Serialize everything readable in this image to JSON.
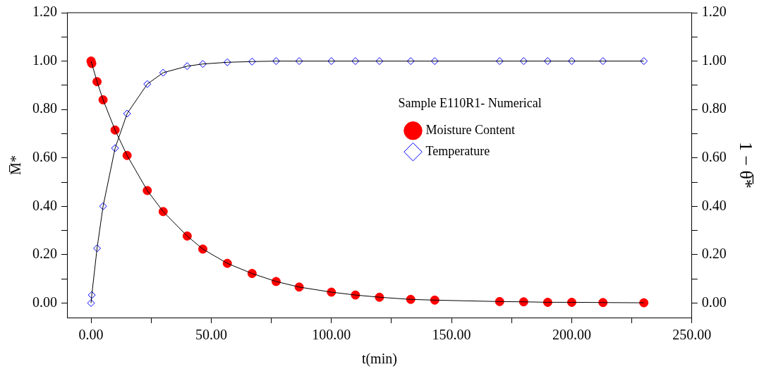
{
  "chart_data": {
    "type": "scatter",
    "xlabel": "t(min)",
    "ylabel": "M̅*",
    "y2label": "1 − θ̅*",
    "legend_title": "Sample E110R1- Numerical",
    "legend": "top right",
    "line_style": "solid",
    "grid": false,
    "xlim": [
      -10,
      250
    ],
    "ylim": [
      -0.06,
      1.2
    ],
    "y2lim": [
      -0.06,
      1.2
    ],
    "xticks": [
      {
        "value": 0,
        "label": "0.00"
      },
      {
        "value": 25,
        "label": null
      },
      {
        "value": 50,
        "label": "50.00"
      },
      {
        "value": 75,
        "label": null
      },
      {
        "value": 100,
        "label": "100.00"
      },
      {
        "value": 125,
        "label": null
      },
      {
        "value": 150,
        "label": "150.00"
      },
      {
        "value": 175,
        "label": null
      },
      {
        "value": 200,
        "label": "200.00"
      },
      {
        "value": 225,
        "label": null
      },
      {
        "value": 250,
        "label": "250.00"
      }
    ],
    "yticks": [
      {
        "value": 0,
        "label": "0.00"
      },
      {
        "value": 0.1,
        "label": null
      },
      {
        "value": 0.2,
        "label": "0.20"
      },
      {
        "value": 0.3,
        "label": null
      },
      {
        "value": 0.4,
        "label": "0.40"
      },
      {
        "value": 0.5,
        "label": null
      },
      {
        "value": 0.6,
        "label": "0.60"
      },
      {
        "value": 0.7,
        "label": null
      },
      {
        "value": 0.8,
        "label": "0.80"
      },
      {
        "value": 0.9,
        "label": null
      },
      {
        "value": 1,
        "label": "1.00"
      },
      {
        "value": 1.1,
        "label": null
      },
      {
        "value": 1.2,
        "label": "1.20"
      }
    ],
    "y2ticks": [
      {
        "value": 0,
        "label": "0.00"
      },
      {
        "value": 0.1,
        "label": null
      },
      {
        "value": 0.2,
        "label": "0.20"
      },
      {
        "value": 0.3,
        "label": null
      },
      {
        "value": 0.4,
        "label": "0.40"
      },
      {
        "value": 0.5,
        "label": null
      },
      {
        "value": 0.6,
        "label": "0.60"
      },
      {
        "value": 0.7,
        "label": null
      },
      {
        "value": 0.8,
        "label": "0.80"
      },
      {
        "value": 0.9,
        "label": null
      },
      {
        "value": 1,
        "label": "1.00"
      },
      {
        "value": 1.1,
        "label": null
      },
      {
        "value": 1.2,
        "label": "1.20"
      }
    ],
    "series": [
      {
        "type": "line",
        "color": "#000000",
        "marker": "none",
        "x": [
          0,
          0.3,
          2.5,
          5,
          10,
          15,
          23.4,
          30,
          40,
          46.5,
          56.7,
          67,
          77,
          86.6,
          100,
          110,
          120,
          133,
          143,
          170,
          180,
          190,
          200,
          213,
          230
        ],
        "values": [
          1.0,
          0.99,
          0.915,
          0.84,
          0.715,
          0.61,
          0.465,
          0.378,
          0.277,
          0.223,
          0.164,
          0.122,
          0.089,
          0.066,
          0.045,
          0.033,
          0.024,
          0.015,
          0.012,
          0.006,
          0.005,
          0.003,
          0.003,
          0.002,
          0.001
        ]
      },
      {
        "type": "line",
        "color": "#000000",
        "marker": "none",
        "axis": "y2",
        "x": [
          0,
          0.3,
          2.5,
          5,
          10,
          15,
          23.4,
          30,
          40,
          46.5,
          56.7,
          67,
          77,
          86.6,
          100,
          110,
          120,
          133,
          143,
          170,
          180,
          190,
          200,
          213,
          230
        ],
        "values": [
          0,
          0.033,
          0.226,
          0.4,
          0.64,
          0.783,
          0.905,
          0.952,
          0.979,
          0.988,
          0.995,
          0.998,
          1.0,
          1.0,
          1.0,
          1.0,
          1.0,
          1.0,
          1.0,
          1.0,
          1.0,
          1.0,
          1.0,
          1.0,
          1.0
        ]
      },
      {
        "name": "Moisture Content",
        "color": "#ff0000",
        "marker": "circle",
        "x": [
          0,
          0.3,
          2.5,
          5,
          10,
          15,
          23.4,
          30,
          40,
          46.5,
          56.7,
          67,
          77,
          86.6,
          100,
          110,
          120,
          133,
          143,
          170,
          180,
          190,
          200,
          213,
          230
        ],
        "values": [
          1.0,
          0.99,
          0.915,
          0.84,
          0.715,
          0.61,
          0.465,
          0.378,
          0.277,
          0.223,
          0.164,
          0.122,
          0.089,
          0.066,
          0.045,
          0.033,
          0.024,
          0.015,
          0.012,
          0.006,
          0.005,
          0.003,
          0.003,
          0.002,
          0.001
        ]
      },
      {
        "name": "Temperature",
        "color": "#0000ff",
        "marker": "diamond",
        "axis": "y2",
        "x": [
          0,
          0.3,
          2.5,
          5,
          10,
          15,
          23.4,
          30,
          40,
          46.5,
          56.7,
          67,
          77,
          86.6,
          100,
          110,
          120,
          133,
          143,
          170,
          180,
          190,
          200,
          213,
          230
        ],
        "values": [
          0,
          0.033,
          0.226,
          0.4,
          0.64,
          0.783,
          0.905,
          0.952,
          0.979,
          0.988,
          0.995,
          0.998,
          1.0,
          1.0,
          1.0,
          1.0,
          1.0,
          1.0,
          1.0,
          1.0,
          1.0,
          1.0,
          1.0,
          1.0,
          1.0
        ]
      }
    ]
  }
}
